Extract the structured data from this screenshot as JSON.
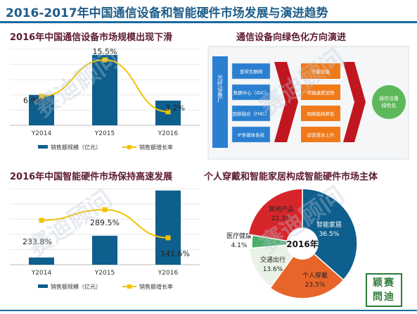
{
  "page": {
    "title": "2016-2017年中国通信设备和智能硬件市场发展与演进趋势",
    "watermark": "赛迪顾问",
    "logo_text": "颖赛問迪"
  },
  "colors": {
    "bar": "#0e5f8e",
    "line": "#f2c200",
    "title": "#1f5e8a",
    "section_title": "#5c1a2e",
    "arrow_red": "#c0161f",
    "box_blue": "#2a7fd0",
    "box_orange": "#f07a1a",
    "result_green": "#5db85a"
  },
  "chart_data": [
    {
      "type": "bar",
      "title": "2016年中国通信设备市场规模出现下滑",
      "categories": [
        "Y2014",
        "Y2015",
        "Y2016"
      ],
      "series": [
        {
          "name": "销售额规模（亿元）",
          "type": "bar",
          "values": [
            1600,
            3700,
            1300
          ]
        },
        {
          "name": "销售额增长率",
          "type": "line",
          "values": [
            6.9,
            15.5,
            3.2
          ],
          "labels": [
            "6.9%",
            "15.5%",
            "3.2%"
          ]
        }
      ],
      "legend": "bottom"
    },
    {
      "type": "bar",
      "title": "2016年中国智能硬件市场保持高速发展",
      "categories": [
        "Y2014",
        "Y2015",
        "Y2016"
      ],
      "series": [
        {
          "name": "销售额规模（亿元）",
          "type": "bar",
          "values": [
            400,
            1600,
            4100
          ]
        },
        {
          "name": "销售额增长率",
          "type": "line",
          "values": [
            233.8,
            289.5,
            141.6
          ],
          "labels": [
            "233.8%",
            "289.5%",
            "141.6%"
          ]
        }
      ],
      "legend": "bottom"
    },
    {
      "type": "pie",
      "title": "个人穿戴和智能家居构成智能硬件市场主体",
      "center_label": "2016年",
      "slices": [
        {
          "label": "智能家居",
          "value": 36.5,
          "value_label": "36.5%",
          "color": "#0e5f8e"
        },
        {
          "label": "个人穿戴",
          "value": 23.5,
          "value_label": "23.5%",
          "color": "#e8652a"
        },
        {
          "label": "交通出行",
          "value": 13.6,
          "value_label": "13.6%",
          "color": "#e9f2e6"
        },
        {
          "label": "医疗健康",
          "value": 4.1,
          "value_label": "4.1%",
          "color": "#4cae6a"
        },
        {
          "label": "其他产品",
          "value": 22.3,
          "value_label": "22.3%",
          "color": "#d7262b"
        }
      ]
    }
  ],
  "diagram": {
    "title": "通信设备向绿色化方向演进",
    "left_label": "光纤设备厂",
    "boxes": [
      "宽带互联网",
      "数据中心（IDC）",
      "固移融合（FMC）",
      "IP多媒体系统"
    ],
    "middle_boxes": [
      "节能设备",
      "传输速度加快",
      "网络能耗降低",
      "运营成本上升"
    ],
    "result": "通信设备绿色化"
  }
}
